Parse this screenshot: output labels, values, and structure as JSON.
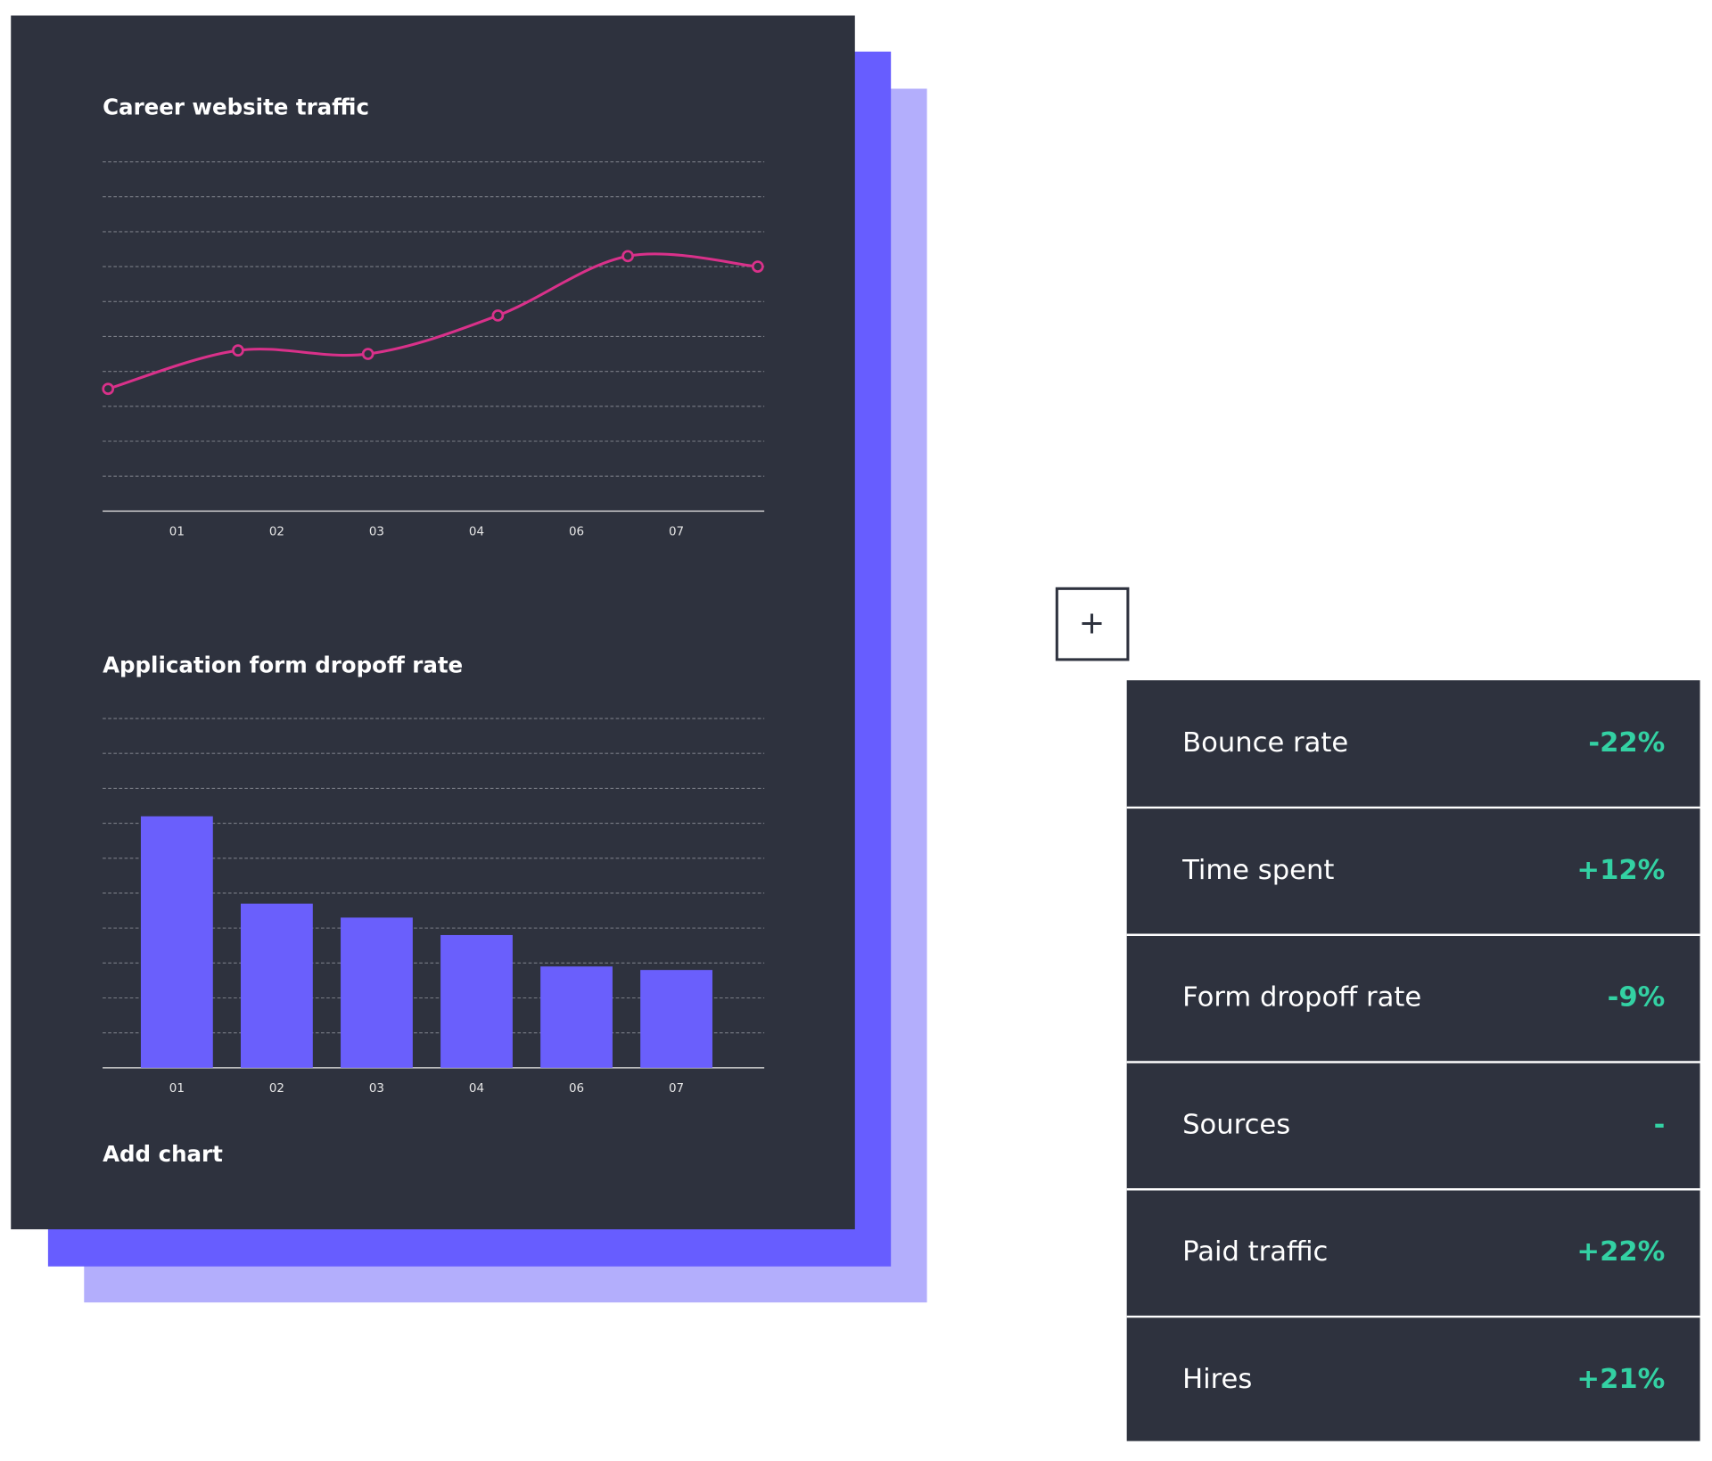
{
  "chart_data": [
    {
      "type": "line",
      "title": "Career website traffic",
      "categories": [
        "01",
        "02",
        "03",
        "04",
        "06",
        "07"
      ],
      "values": [
        3.5,
        4.6,
        4.5,
        5.6,
        7.3,
        7.0
      ],
      "color": "#d9318a",
      "ylim": [
        0,
        10
      ],
      "yticks": [
        0,
        1,
        2,
        3,
        4,
        5,
        6,
        7,
        8,
        9,
        10
      ],
      "grid": true
    },
    {
      "type": "bar",
      "title": "Application form dropoff rate",
      "categories": [
        "01",
        "02",
        "03",
        "04",
        "06",
        "07"
      ],
      "values": [
        7.2,
        4.7,
        4.3,
        3.8,
        2.9,
        2.8
      ],
      "color": "#6a5ffc",
      "ylim": [
        0,
        10
      ],
      "yticks": [
        0,
        1,
        2,
        3,
        4,
        5,
        6,
        7,
        8,
        9,
        10
      ],
      "grid": true
    }
  ],
  "add_chart": "Add chart",
  "metrics": {
    "rows": [
      {
        "label": "Bounce rate",
        "value": "-22%"
      },
      {
        "label": "Time spent",
        "value": "+12%"
      },
      {
        "label": "Form dropoff rate",
        "value": "-9%"
      },
      {
        "label": "Sources",
        "value": "-"
      },
      {
        "label": "Paid traffic",
        "value": "+22%"
      },
      {
        "label": "Hires",
        "value": "+21%"
      }
    ]
  }
}
